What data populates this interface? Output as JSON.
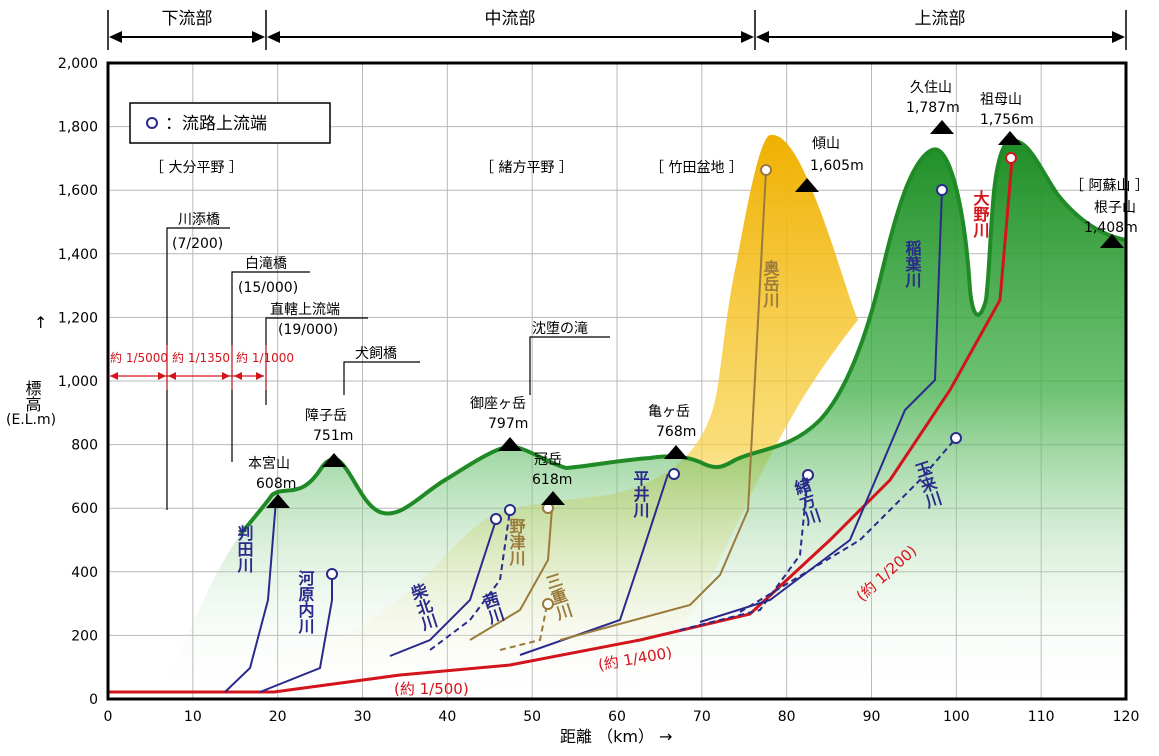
{
  "sections": [
    "下流部",
    "中流部",
    "上流部"
  ],
  "legend_text": "：流路上流端",
  "plains": [
    "［ 大分平野 ］",
    "［ 緒方平野 ］",
    "［ 竹田盆地 ］",
    "［ 阿蘇山 ］"
  ],
  "bridges": [
    {
      "name": "川添橋",
      "grade": "(7/200)"
    },
    {
      "name": "白滝橋",
      "grade": "(15/000)"
    },
    {
      "name": "直轄上流端",
      "grade": "(19/000)"
    },
    {
      "name": "犬飼橋",
      "grade": ""
    },
    {
      "name": "沈堕の滝",
      "grade": ""
    }
  ],
  "gradients": [
    "約 1/5000",
    "約 1/1350",
    "約 1/1000"
  ],
  "peaks": [
    {
      "name": "本宮山",
      "elev": "608m"
    },
    {
      "name": "障子岳",
      "elev": "751m"
    },
    {
      "name": "御座ヶ岳",
      "elev": "797m"
    },
    {
      "name": "冠岳",
      "elev": "618m"
    },
    {
      "name": "亀ヶ岳",
      "elev": "768m"
    },
    {
      "name": "傾山",
      "elev": "1,605m"
    },
    {
      "name": "久住山",
      "elev": "1,787m"
    },
    {
      "name": "祖母山",
      "elev": "1,756m"
    },
    {
      "name": "根子山",
      "elev": "1,408m"
    }
  ],
  "rivers": [
    "判田川",
    "河原内川",
    "柴北川",
    "茜川",
    "野津川",
    "三重川",
    "平井川",
    "奥岳川",
    "緒方川",
    "稲葉川",
    "大野川",
    "玉来川"
  ],
  "slopes": [
    "(約 1/500)",
    "(約 1/400)",
    "(約 1/200)"
  ],
  "axis": {
    "xlabel": "距離 （km） →",
    "ylabel_arrow": "↑",
    "ylabel_main": "標高",
    "ylabel_unit": "(E.L.m)",
    "xticks": [
      "0",
      "10",
      "20",
      "30",
      "40",
      "50",
      "60",
      "70",
      "80",
      "90",
      "100",
      "110",
      "120"
    ],
    "yticks": [
      "0",
      "200",
      "400",
      "600",
      "800",
      "1,000",
      "1,200",
      "1,400",
      "1,600",
      "1,800",
      "2,000"
    ]
  },
  "colors": {
    "ridge": "#23922a",
    "plain": "#f0b400",
    "main_river": "#d4141c",
    "tributary": "#2a2a8c",
    "brown_river": "#9b7b3c"
  }
}
